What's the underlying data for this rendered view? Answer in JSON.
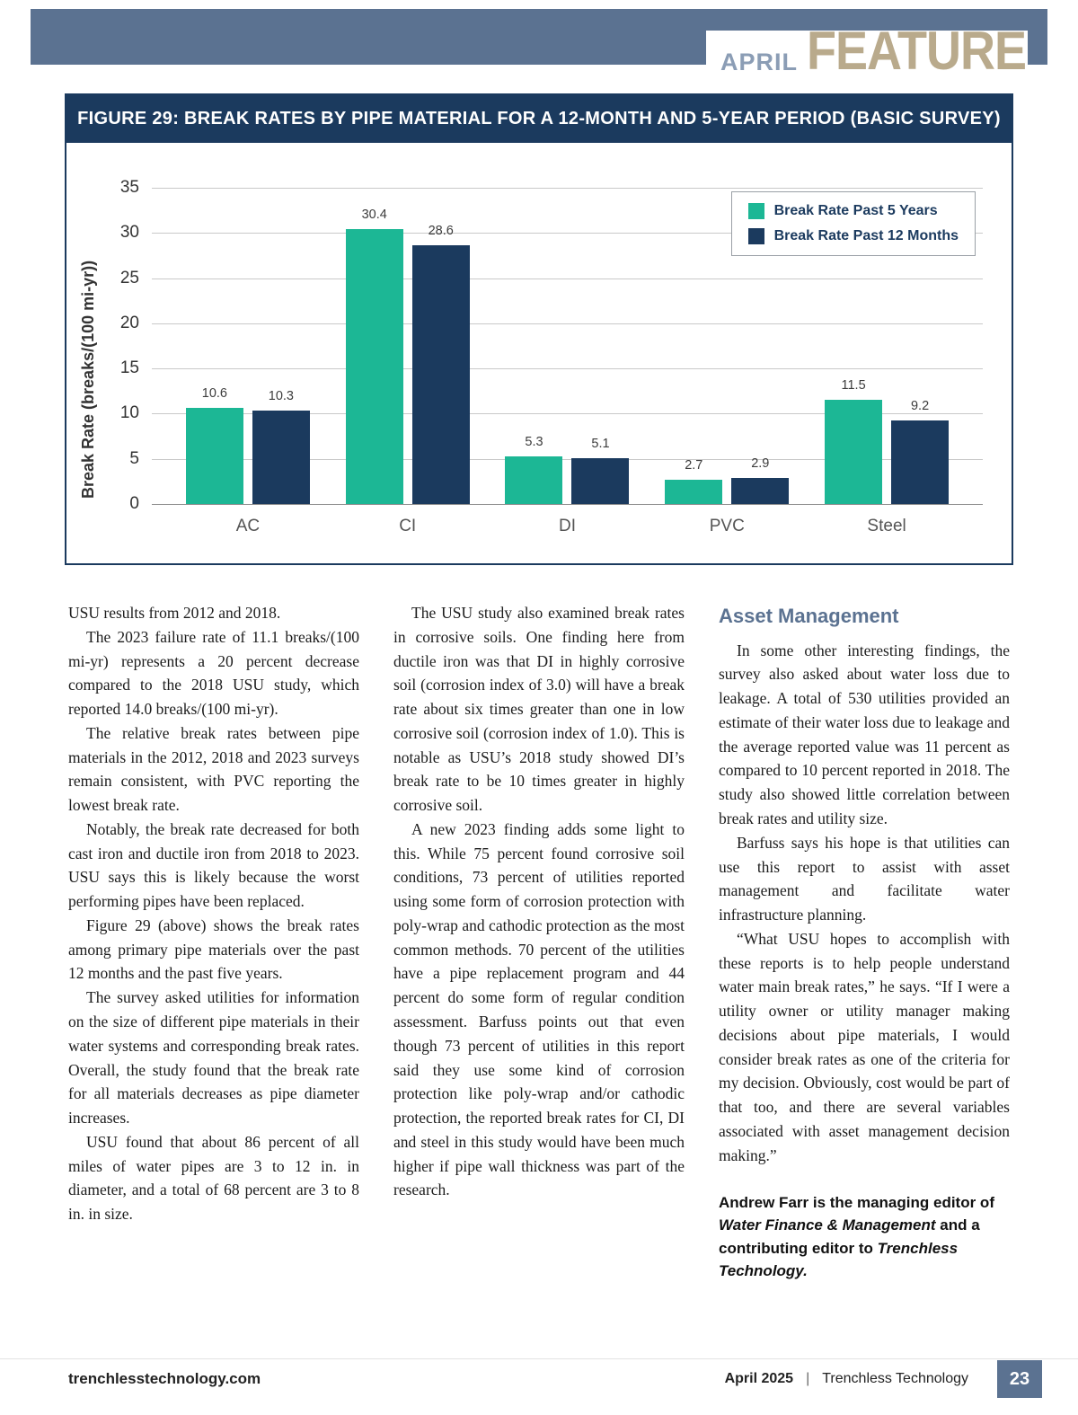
{
  "page": {
    "eyebrow": {
      "month": "APRIL",
      "label": "FEATURE"
    },
    "footer": {
      "site": "trenchlesstechnology.com",
      "issue": "April 2025",
      "separator": "|",
      "publication": "Trenchless Technology",
      "page_number": "23"
    }
  },
  "figure": {
    "title": "FIGURE 29: BREAK RATES BY PIPE MATERIAL FOR A 12-MONTH AND 5-YEAR PERIOD (BASIC SURVEY)"
  },
  "chart_data": {
    "type": "bar",
    "title": "FIGURE 29: BREAK RATES BY PIPE MATERIAL FOR A 12-MONTH AND 5-YEAR PERIOD (BASIC SURVEY)",
    "categories": [
      "AC",
      "CI",
      "DI",
      "PVC",
      "Steel"
    ],
    "series": [
      {
        "name": "Break Rate Past 5 Years",
        "color": "#1cb795",
        "values": [
          10.6,
          30.4,
          5.3,
          2.7,
          11.5
        ]
      },
      {
        "name": "Break Rate Past 12 Months",
        "color": "#1b3a5e",
        "values": [
          10.3,
          28.6,
          5.1,
          2.9,
          9.2
        ]
      }
    ],
    "xlabel": "",
    "ylabel": "Break Rate (breaks/(100 mi-yr))",
    "ylim": [
      0,
      35
    ],
    "ytick_step": 5,
    "grid": true,
    "legend_position": "top-right"
  },
  "colors": {
    "accent_slate": "#5b7291",
    "navy": "#1b3a5e",
    "teal": "#1cb795",
    "feature_tan": "#b9aa8c"
  },
  "article": {
    "col1": [
      "USU results from 2012 and 2018.",
      "The 2023 failure rate of 11.1 breaks/(100 mi-yr) represents a 20 percent decrease compared to the 2018 USU study, which reported 14.0 breaks/(100 mi-yr).",
      "The relative break rates between pipe materials in the 2012, 2018 and 2023 surveys remain consistent, with PVC reporting the lowest break rate.",
      "Notably, the break rate decreased for both cast iron and ductile iron from 2018 to 2023. USU says this is likely because the worst performing pipes have been replaced.",
      "Figure 29 (above) shows the break rates among primary pipe materials over the past 12 months and the past five years.",
      "The survey asked utilities for information on the size of different pipe materials in their water systems and corresponding break rates. Overall, the study found that the break rate for all materials decreases as pipe diameter increases.",
      "USU found that about 86 percent of all miles of water pipes are 3 to 12 in. in diameter, and a total of 68 percent are 3 to 8 in. in size."
    ],
    "col2": [
      "The USU study also examined break rates in corrosive soils. One finding here from ductile iron was that DI in highly corrosive soil (corrosion index of 3.0) will have a break rate about six times greater than one in low corrosive soil (corrosion index of 1.0). This is notable as USU’s 2018 study showed DI’s break rate to be 10 times greater in highly corrosive soil.",
      "A new 2023 finding adds some light to this. While 75 percent found corrosive soil conditions, 73 percent of utilities reported using some form of corrosion protection with poly-wrap and cathodic protection as the most common methods. 70 percent of the utilities have a pipe replacement program and 44 percent do some form of regular condition assessment. Barfuss points out that even though 73 percent of utilities in this report said they use some kind of corrosion protection like poly-wrap and/or cathodic protection, the reported break rates for CI, DI and steel in this study would have been much higher if pipe wall thickness was part of the research."
    ],
    "col3_heading": "Asset Management",
    "col3": [
      "In some other interesting findings, the survey also asked about water loss due to leakage. A total of 530 utilities provided an estimate of their water loss due to leakage and the average reported value was 11 percent as compared to 10 percent reported in 2018. The study also showed little correlation between break rates and utility size.",
      "Barfuss says his hope is that utilities can use this report to assist with asset management and facilitate water infrastructure planning.",
      "“What USU hopes to accomplish with these reports is to help people understand water main break rates,” he says. “If I were a utility owner or utility manager making decisions about pipe materials, I would consider break rates as one of the criteria for my decision. Obviously, cost would be part of that too, and there are several variables associated with asset management decision making.”"
    ],
    "byline": {
      "part1": "Andrew Farr is the managing editor of ",
      "italic1": "Water Finance & Management",
      "part2": " and a contributing editor to ",
      "italic2": "Trenchless Technology."
    }
  }
}
